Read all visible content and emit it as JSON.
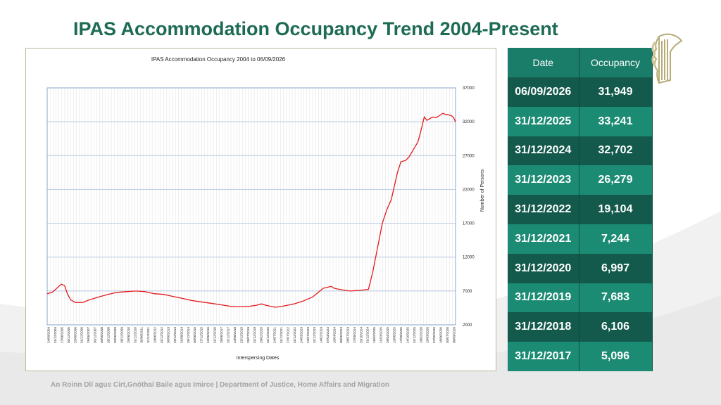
{
  "page": {
    "title": "IPAS Accommodation Occupancy Trend 2004-Present",
    "footer": "An Roinn Dlí agus Cirt,Gnóthaí Baile agus Imirce | Department of Justice, Home Affairs and Migration"
  },
  "colors": {
    "title": "#1e6b55",
    "line": "#e31a1c",
    "table_dark": "#135a4c",
    "table_light": "#1c8b74"
  },
  "icons": {
    "crest": "harp-crest-icon"
  },
  "table": {
    "headers": [
      "Date",
      "Occupancy"
    ],
    "rows": [
      {
        "date": "06/09/2026",
        "occupancy": "31,949"
      },
      {
        "date": "31/12/2025",
        "occupancy": "33,241"
      },
      {
        "date": "31/12/2024",
        "occupancy": "32,702"
      },
      {
        "date": "31/12/2023",
        "occupancy": "26,279"
      },
      {
        "date": "31/12/2022",
        "occupancy": "19,104"
      },
      {
        "date": "31/12/2021",
        "occupancy": "7,244"
      },
      {
        "date": "31/12/2020",
        "occupancy": "6,997"
      },
      {
        "date": "31/12/2019",
        "occupancy": "7,683"
      },
      {
        "date": "31/12/2018",
        "occupancy": "6,106"
      },
      {
        "date": "31/12/2017",
        "occupancy": "5,096"
      }
    ]
  },
  "chart_data": {
    "type": "line",
    "title": "IPAS Accommodation Occupancy 2004 to 06/09/2026",
    "xlabel": "Interspersing Dates",
    "ylabel": "Number of Persons",
    "ylim": [
      2000,
      37000
    ],
    "yticks": [
      2000,
      7000,
      12000,
      17000,
      22000,
      27000,
      32000,
      37000
    ],
    "y_axis_side": "right",
    "grid": true,
    "legend": "none",
    "xlim": [
      "2004-09-24",
      "2026-09-06"
    ],
    "xtick_labels": [
      "24/09/2004",
      "31/12/2004",
      "27/06/2005",
      "30/12/2005",
      "25/08/2006",
      "31/12/2006",
      "29/06/2007",
      "30/12/2007",
      "30/06/2008",
      "28/12/2008",
      "30/06/2009",
      "28/12/2009",
      "25/06/2010",
      "31/12/2010",
      "30/06/2011",
      "31/12/2011",
      "24/06/2012",
      "31/12/2012",
      "30/06/2013",
      "29/12/2013",
      "31/08/2014",
      "28/12/2014",
      "30/06/2015",
      "27/12/2015",
      "24/06/2016",
      "31/12/2016",
      "28/06/2017",
      "31/12/2017",
      "24/06/2018",
      "29/12/2018",
      "28/07/2019",
      "31/12/2019",
      "29/02/2020",
      "31/12/2020",
      "24/07/2021",
      "31/12/2021",
      "27/07/2022",
      "31/12/2022",
      "24/03/2023",
      "24/07/2023",
      "31/12/2023",
      "14/02/2024",
      "07/03/2024",
      "10/04/2024",
      "08/06/2024",
      "28/07/2024",
      "27/08/2024",
      "20/10/2024",
      "31/12/2024",
      "19/02/2025",
      "21/03/2025",
      "28/04/2025",
      "13/06/2025",
      "17/08/2025",
      "24/10/2025",
      "31/12/2025",
      "18/02/2026",
      "15/03/2026",
      "07/05/2026",
      "16/06/2026",
      "30/07/2026",
      "06/09/2026"
    ],
    "series": [
      {
        "values": [
          {
            "x": "2004-09-24",
            "y": 6600
          },
          {
            "x": "2004-12-31",
            "y": 6800
          },
          {
            "x": "2005-03-31",
            "y": 7400
          },
          {
            "x": "2005-06-27",
            "y": 8000
          },
          {
            "x": "2005-08-31",
            "y": 7800
          },
          {
            "x": "2005-10-31",
            "y": 6500
          },
          {
            "x": "2005-12-30",
            "y": 5700
          },
          {
            "x": "2006-03-31",
            "y": 5300
          },
          {
            "x": "2006-08-25",
            "y": 5300
          },
          {
            "x": "2006-12-31",
            "y": 5700
          },
          {
            "x": "2007-06-29",
            "y": 6100
          },
          {
            "x": "2007-12-30",
            "y": 6500
          },
          {
            "x": "2008-06-30",
            "y": 6800
          },
          {
            "x": "2008-12-28",
            "y": 6900
          },
          {
            "x": "2009-06-30",
            "y": 7000
          },
          {
            "x": "2009-12-28",
            "y": 6900
          },
          {
            "x": "2010-06-25",
            "y": 6600
          },
          {
            "x": "2010-12-31",
            "y": 6500
          },
          {
            "x": "2011-06-30",
            "y": 6200
          },
          {
            "x": "2011-12-31",
            "y": 5900
          },
          {
            "x": "2012-06-24",
            "y": 5600
          },
          {
            "x": "2012-12-31",
            "y": 5400
          },
          {
            "x": "2013-06-30",
            "y": 5200
          },
          {
            "x": "2013-12-29",
            "y": 5000
          },
          {
            "x": "2014-08-31",
            "y": 4700
          },
          {
            "x": "2014-12-28",
            "y": 4700
          },
          {
            "x": "2015-06-30",
            "y": 4700
          },
          {
            "x": "2015-12-27",
            "y": 4900
          },
          {
            "x": "2016-03-31",
            "y": 5100
          },
          {
            "x": "2016-06-24",
            "y": 4900
          },
          {
            "x": "2016-12-31",
            "y": 4600
          },
          {
            "x": "2017-06-28",
            "y": 4800
          },
          {
            "x": "2017-12-31",
            "y": 5096
          },
          {
            "x": "2018-06-24",
            "y": 5500
          },
          {
            "x": "2018-12-29",
            "y": 6106
          },
          {
            "x": "2019-07-28",
            "y": 7400
          },
          {
            "x": "2019-12-31",
            "y": 7683
          },
          {
            "x": "2020-02-29",
            "y": 7400
          },
          {
            "x": "2020-06-30",
            "y": 7200
          },
          {
            "x": "2020-12-31",
            "y": 6997
          },
          {
            "x": "2021-07-24",
            "y": 7100
          },
          {
            "x": "2021-12-31",
            "y": 7244
          },
          {
            "x": "2022-03-31",
            "y": 10000
          },
          {
            "x": "2022-07-27",
            "y": 14500
          },
          {
            "x": "2022-09-30",
            "y": 17000
          },
          {
            "x": "2022-12-31",
            "y": 19104
          },
          {
            "x": "2023-03-24",
            "y": 20500
          },
          {
            "x": "2023-07-24",
            "y": 24500
          },
          {
            "x": "2023-09-30",
            "y": 26100
          },
          {
            "x": "2023-12-31",
            "y": 26279
          },
          {
            "x": "2024-03-07",
            "y": 26800
          },
          {
            "x": "2024-06-08",
            "y": 28000
          },
          {
            "x": "2024-08-27",
            "y": 29000
          },
          {
            "x": "2024-10-20",
            "y": 30500
          },
          {
            "x": "2024-12-31",
            "y": 32702
          },
          {
            "x": "2025-02-19",
            "y": 32200
          },
          {
            "x": "2025-04-28",
            "y": 32500
          },
          {
            "x": "2025-06-13",
            "y": 32700
          },
          {
            "x": "2025-08-17",
            "y": 32600
          },
          {
            "x": "2025-10-24",
            "y": 32900
          },
          {
            "x": "2025-12-31",
            "y": 33241
          },
          {
            "x": "2026-02-18",
            "y": 33100
          },
          {
            "x": "2026-04-30",
            "y": 33000
          },
          {
            "x": "2026-06-16",
            "y": 32900
          },
          {
            "x": "2026-07-30",
            "y": 32600
          },
          {
            "x": "2026-09-06",
            "y": 31949
          }
        ]
      }
    ]
  }
}
